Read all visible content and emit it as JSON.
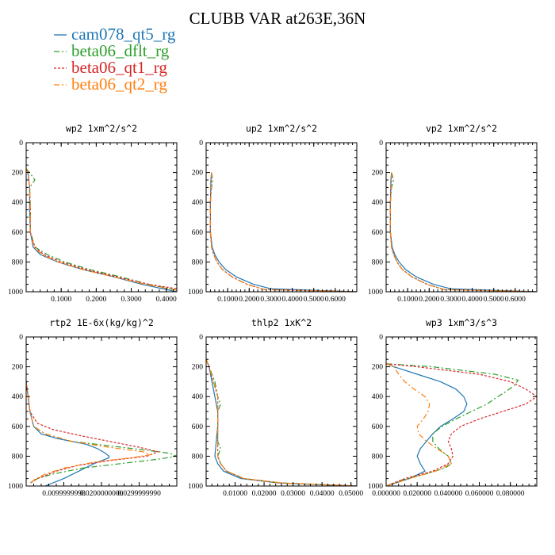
{
  "figure": {
    "title": "CLUBB VAR at263E,36N"
  },
  "legend": [
    {
      "name": "cam078_qt5_rg",
      "color": "#1f77b4",
      "dash": ""
    },
    {
      "name": "beta06_dflt_rg",
      "color": "#2ca02c",
      "dash": "7,3,2,3"
    },
    {
      "name": "beta06_qt1_rg",
      "color": "#d62728",
      "dash": "3,2"
    },
    {
      "name": "beta06_qt2_rg",
      "color": "#ff7f0e",
      "dash": "7,3,2,3"
    }
  ],
  "chart_data": [
    {
      "type": "line",
      "title": "wp2  1xm^2/s^2",
      "xlim": [
        0,
        0.43
      ],
      "ylim": [
        1000,
        0
      ],
      "xticks": [
        0.1,
        0.2,
        0.3,
        0.4
      ],
      "xtick_labels": [
        "0.1000",
        "0.2000",
        "0.3000",
        "0.4000"
      ],
      "yticks": [
        0,
        200,
        400,
        600,
        800,
        1000
      ],
      "series": [
        {
          "y": [
            175,
            200,
            300,
            450,
            600,
            700,
            750,
            800,
            850,
            900,
            950,
            1000
          ],
          "x": [
            0.0,
            0.005,
            0.01,
            0.01,
            0.012,
            0.02,
            0.04,
            0.09,
            0.16,
            0.25,
            0.33,
            0.43
          ]
        },
        {
          "y": [
            175,
            200,
            250,
            300,
            450,
            600,
            700,
            750,
            800,
            850,
            900,
            950,
            990
          ],
          "x": [
            0.0,
            0.01,
            0.025,
            0.01,
            0.012,
            0.012,
            0.025,
            0.06,
            0.11,
            0.18,
            0.27,
            0.35,
            0.43
          ]
        },
        {
          "y": [
            175,
            200,
            300,
            450,
            600,
            700,
            750,
            800,
            850,
            900,
            950,
            980
          ],
          "x": [
            0.0,
            0.005,
            0.01,
            0.012,
            0.012,
            0.025,
            0.05,
            0.1,
            0.17,
            0.26,
            0.35,
            0.43
          ]
        },
        {
          "y": [
            175,
            200,
            300,
            450,
            600,
            700,
            750,
            800,
            850,
            900,
            950,
            990
          ],
          "x": [
            0.0,
            0.005,
            0.01,
            0.012,
            0.012,
            0.022,
            0.045,
            0.09,
            0.16,
            0.25,
            0.34,
            0.43
          ]
        }
      ]
    },
    {
      "type": "line",
      "title": "up2  1xm^2/s^2",
      "xlim": [
        0,
        0.7
      ],
      "ylim": [
        1000,
        0
      ],
      "xticks": [
        0.1,
        0.2,
        0.3,
        0.4,
        0.5,
        0.6
      ],
      "xtick_labels": [
        "0.1000",
        "0.2000",
        "0.3000",
        "0.4000",
        "0.5000",
        "0.6000"
      ],
      "yticks": [
        0,
        200,
        400,
        600,
        800,
        1000
      ],
      "series": [
        {
          "y": [
            200,
            250,
            400,
            600,
            700,
            750,
            800,
            850,
            900,
            950,
            980,
            1000
          ],
          "x": [
            0.025,
            0.022,
            0.02,
            0.02,
            0.028,
            0.04,
            0.06,
            0.09,
            0.14,
            0.22,
            0.3,
            0.7
          ]
        },
        {
          "y": [
            200,
            250,
            300,
            400,
            600,
            700,
            750,
            800,
            850,
            900,
            950,
            985,
            1000
          ],
          "x": [
            0.025,
            0.03,
            0.025,
            0.02,
            0.02,
            0.025,
            0.035,
            0.05,
            0.075,
            0.12,
            0.19,
            0.27,
            0.7
          ]
        },
        {
          "y": [
            200,
            250,
            400,
            600,
            700,
            750,
            800,
            850,
            900,
            950,
            985,
            1000
          ],
          "x": [
            0.025,
            0.025,
            0.02,
            0.02,
            0.025,
            0.035,
            0.05,
            0.075,
            0.12,
            0.19,
            0.27,
            0.7
          ]
        },
        {
          "y": [
            200,
            250,
            400,
            600,
            700,
            750,
            800,
            850,
            900,
            950,
            985,
            1000
          ],
          "x": [
            0.025,
            0.025,
            0.02,
            0.02,
            0.025,
            0.035,
            0.05,
            0.075,
            0.12,
            0.19,
            0.27,
            0.7
          ]
        }
      ]
    },
    {
      "type": "line",
      "title": "vp2  1xm^2/s^2",
      "xlim": [
        0,
        0.7
      ],
      "ylim": [
        1000,
        0
      ],
      "xticks": [
        0.1,
        0.2,
        0.3,
        0.4,
        0.5,
        0.6
      ],
      "xtick_labels": [
        "0.1000",
        "0.2000",
        "0.3000",
        "0.4000",
        "0.5000",
        "0.6000"
      ],
      "yticks": [
        0,
        200,
        400,
        600,
        800,
        1000
      ],
      "series": [
        {
          "y": [
            200,
            250,
            400,
            600,
            700,
            750,
            800,
            850,
            900,
            950,
            980,
            1000
          ],
          "x": [
            0.025,
            0.022,
            0.02,
            0.02,
            0.028,
            0.04,
            0.06,
            0.09,
            0.14,
            0.22,
            0.3,
            0.7
          ]
        },
        {
          "y": [
            200,
            250,
            300,
            400,
            600,
            700,
            750,
            800,
            850,
            900,
            950,
            985,
            1000
          ],
          "x": [
            0.025,
            0.035,
            0.025,
            0.02,
            0.02,
            0.025,
            0.035,
            0.05,
            0.075,
            0.12,
            0.19,
            0.27,
            0.7
          ]
        },
        {
          "y": [
            200,
            250,
            400,
            600,
            700,
            750,
            800,
            850,
            900,
            950,
            985,
            1000
          ],
          "x": [
            0.025,
            0.025,
            0.02,
            0.02,
            0.025,
            0.035,
            0.05,
            0.075,
            0.12,
            0.19,
            0.27,
            0.7
          ]
        },
        {
          "y": [
            200,
            250,
            400,
            600,
            700,
            750,
            800,
            850,
            900,
            950,
            985,
            1000
          ],
          "x": [
            0.025,
            0.025,
            0.02,
            0.02,
            0.025,
            0.035,
            0.05,
            0.075,
            0.12,
            0.19,
            0.27,
            0.7
          ]
        }
      ]
    },
    {
      "type": "line",
      "title": "rtp2  1E-6x(kg/kg)^2",
      "xlim": [
        0,
        0.04
      ],
      "ylim": [
        1000,
        0
      ],
      "xticks": [
        0.01,
        0.02,
        0.03
      ],
      "xtick_labels": [
        "0.0099999998",
        "0.0200000000",
        "0.0299999990"
      ],
      "yticks": [
        0,
        200,
        400,
        600,
        800,
        1000
      ],
      "series": [
        {
          "y": [
            300,
            500,
            600,
            650,
            680,
            700,
            720,
            750,
            780,
            800,
            810,
            820,
            850,
            900,
            950,
            1000
          ],
          "x": [
            0.0,
            0.001,
            0.002,
            0.004,
            0.008,
            0.012,
            0.016,
            0.019,
            0.021,
            0.022,
            0.022,
            0.021,
            0.018,
            0.014,
            0.01,
            0.005
          ]
        },
        {
          "y": [
            300,
            500,
            600,
            650,
            700,
            730,
            760,
            780,
            800,
            820,
            850,
            880,
            920,
            950,
            980
          ],
          "x": [
            0.0,
            0.001,
            0.002,
            0.005,
            0.012,
            0.022,
            0.032,
            0.038,
            0.04,
            0.035,
            0.025,
            0.015,
            0.007,
            0.003,
            0.001
          ]
        },
        {
          "y": [
            300,
            500,
            580,
            620,
            660,
            700,
            740,
            770,
            800,
            830,
            860,
            900,
            950,
            980
          ],
          "x": [
            0.0,
            0.001,
            0.003,
            0.007,
            0.014,
            0.022,
            0.03,
            0.035,
            0.032,
            0.022,
            0.014,
            0.008,
            0.003,
            0.001
          ]
        },
        {
          "y": [
            300,
            500,
            600,
            650,
            700,
            740,
            770,
            790,
            810,
            840,
            880,
            920,
            960,
            990
          ],
          "x": [
            0.0,
            0.001,
            0.002,
            0.005,
            0.012,
            0.022,
            0.031,
            0.033,
            0.028,
            0.018,
            0.01,
            0.005,
            0.002,
            0.001
          ]
        }
      ]
    },
    {
      "type": "line",
      "title": "thlp2  1xK^2",
      "xlim": [
        0,
        0.052
      ],
      "ylim": [
        1000,
        0
      ],
      "xticks": [
        0.01,
        0.02,
        0.03,
        0.04,
        0.05
      ],
      "xtick_labels": [
        "0.01000",
        "0.02000",
        "0.03000",
        "0.04000",
        "0.05000"
      ],
      "yticks": [
        0,
        200,
        400,
        600,
        800,
        1000
      ],
      "series": [
        {
          "y": [
            150,
            200,
            300,
            400,
            500,
            600,
            700,
            800,
            850,
            900,
            950,
            980,
            1000
          ],
          "x": [
            0.0,
            0.001,
            0.002,
            0.003,
            0.004,
            0.004,
            0.0035,
            0.003,
            0.004,
            0.006,
            0.012,
            0.025,
            0.052
          ]
        },
        {
          "y": [
            150,
            200,
            250,
            300,
            400,
            450,
            500,
            600,
            700,
            750,
            800,
            850,
            900,
            950,
            980,
            1000
          ],
          "x": [
            0.0,
            0.001,
            0.002,
            0.003,
            0.004,
            0.005,
            0.004,
            0.004,
            0.004,
            0.005,
            0.004,
            0.005,
            0.007,
            0.013,
            0.026,
            0.052
          ]
        },
        {
          "y": [
            150,
            200,
            300,
            400,
            500,
            600,
            700,
            800,
            850,
            900,
            950,
            980,
            1000
          ],
          "x": [
            0.0,
            0.001,
            0.0025,
            0.004,
            0.004,
            0.004,
            0.004,
            0.004,
            0.005,
            0.007,
            0.013,
            0.026,
            0.052
          ]
        },
        {
          "y": [
            150,
            200,
            300,
            400,
            500,
            600,
            700,
            800,
            850,
            900,
            950,
            980,
            1000
          ],
          "x": [
            0.0,
            0.001,
            0.0025,
            0.004,
            0.004,
            0.004,
            0.004,
            0.004,
            0.005,
            0.007,
            0.013,
            0.026,
            0.052
          ]
        }
      ]
    },
    {
      "type": "line",
      "title": "wp3  1xm^3/s^3",
      "xlim": [
        0,
        0.097
      ],
      "ylim": [
        1000,
        0
      ],
      "xticks": [
        0,
        0.02,
        0.04,
        0.06,
        0.08
      ],
      "xtick_labels": [
        "0.000000",
        "0.020000",
        "0.040000",
        "0.060000",
        "0.080000"
      ],
      "yticks": [
        0,
        200,
        400,
        600,
        800,
        1000
      ],
      "series": [
        {
          "y": [
            180,
            200,
            250,
            300,
            350,
            400,
            450,
            500,
            550,
            600,
            650,
            700,
            750,
            800,
            850,
            900,
            950,
            1000
          ],
          "x": [
            0.0,
            0.005,
            0.02,
            0.035,
            0.045,
            0.05,
            0.052,
            0.05,
            0.043,
            0.035,
            0.03,
            0.026,
            0.022,
            0.02,
            0.022,
            0.025,
            0.015,
            0.0
          ]
        },
        {
          "y": [
            180,
            200,
            250,
            290,
            320,
            360,
            400,
            450,
            500,
            550,
            600,
            650,
            700,
            750,
            800,
            850,
            880,
            920,
            960,
            1000
          ],
          "x": [
            0.0,
            0.03,
            0.07,
            0.085,
            0.083,
            0.078,
            0.072,
            0.065,
            0.055,
            0.045,
            0.036,
            0.03,
            0.03,
            0.034,
            0.04,
            0.042,
            0.038,
            0.025,
            0.01,
            0.0
          ]
        },
        {
          "y": [
            180,
            200,
            250,
            300,
            350,
            400,
            450,
            500,
            550,
            600,
            650,
            700,
            750,
            800,
            850,
            900,
            950,
            1000
          ],
          "x": [
            0.0,
            0.02,
            0.06,
            0.08,
            0.09,
            0.097,
            0.09,
            0.075,
            0.06,
            0.048,
            0.042,
            0.04,
            0.042,
            0.043,
            0.04,
            0.03,
            0.012,
            0.0
          ]
        },
        {
          "y": [
            180,
            200,
            250,
            300,
            350,
            400,
            450,
            500,
            550,
            600,
            650,
            700,
            750,
            800,
            850,
            900,
            950,
            1000
          ],
          "x": [
            0.0,
            0.005,
            0.008,
            0.012,
            0.018,
            0.025,
            0.028,
            0.027,
            0.024,
            0.02,
            0.021,
            0.026,
            0.033,
            0.04,
            0.042,
            0.032,
            0.015,
            0.0
          ]
        }
      ]
    }
  ]
}
